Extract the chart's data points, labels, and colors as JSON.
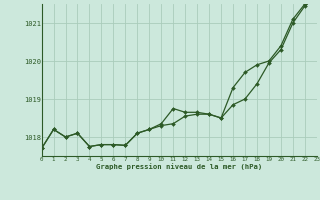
{
  "title": "Graphe pression niveau de la mer (hPa)",
  "background_color": "#cce8dc",
  "grid_color": "#aaccbb",
  "line_color": "#2d5a27",
  "x_values": [
    0,
    1,
    2,
    3,
    4,
    5,
    6,
    7,
    8,
    9,
    10,
    11,
    12,
    13,
    14,
    15,
    16,
    17,
    18,
    19,
    20,
    21,
    22,
    23
  ],
  "y_line1": [
    1017.7,
    1018.2,
    1018.0,
    1018.1,
    1017.75,
    1017.8,
    1017.8,
    1017.78,
    1018.1,
    1018.2,
    1018.3,
    1018.35,
    1018.55,
    1018.6,
    1018.6,
    1018.5,
    1018.85,
    1019.0,
    1019.4,
    1019.95,
    1020.3,
    1021.0,
    1021.45,
    1021.7
  ],
  "y_line2": [
    1017.7,
    1018.2,
    1018.0,
    1018.1,
    1017.75,
    1017.8,
    1017.8,
    1017.78,
    1018.1,
    1018.2,
    1018.35,
    1018.75,
    1018.65,
    1018.65,
    1018.6,
    1018.5,
    1019.3,
    1019.7,
    1019.9,
    1020.0,
    1020.4,
    1021.1,
    1021.5,
    1021.7
  ],
  "ylim": [
    1017.5,
    1021.5
  ],
  "yticks": [
    1018,
    1019,
    1020,
    1021
  ],
  "xlim": [
    0,
    23
  ],
  "xticks": [
    0,
    1,
    2,
    3,
    4,
    5,
    6,
    7,
    8,
    9,
    10,
    11,
    12,
    13,
    14,
    15,
    16,
    17,
    18,
    19,
    20,
    21,
    22,
    23
  ]
}
